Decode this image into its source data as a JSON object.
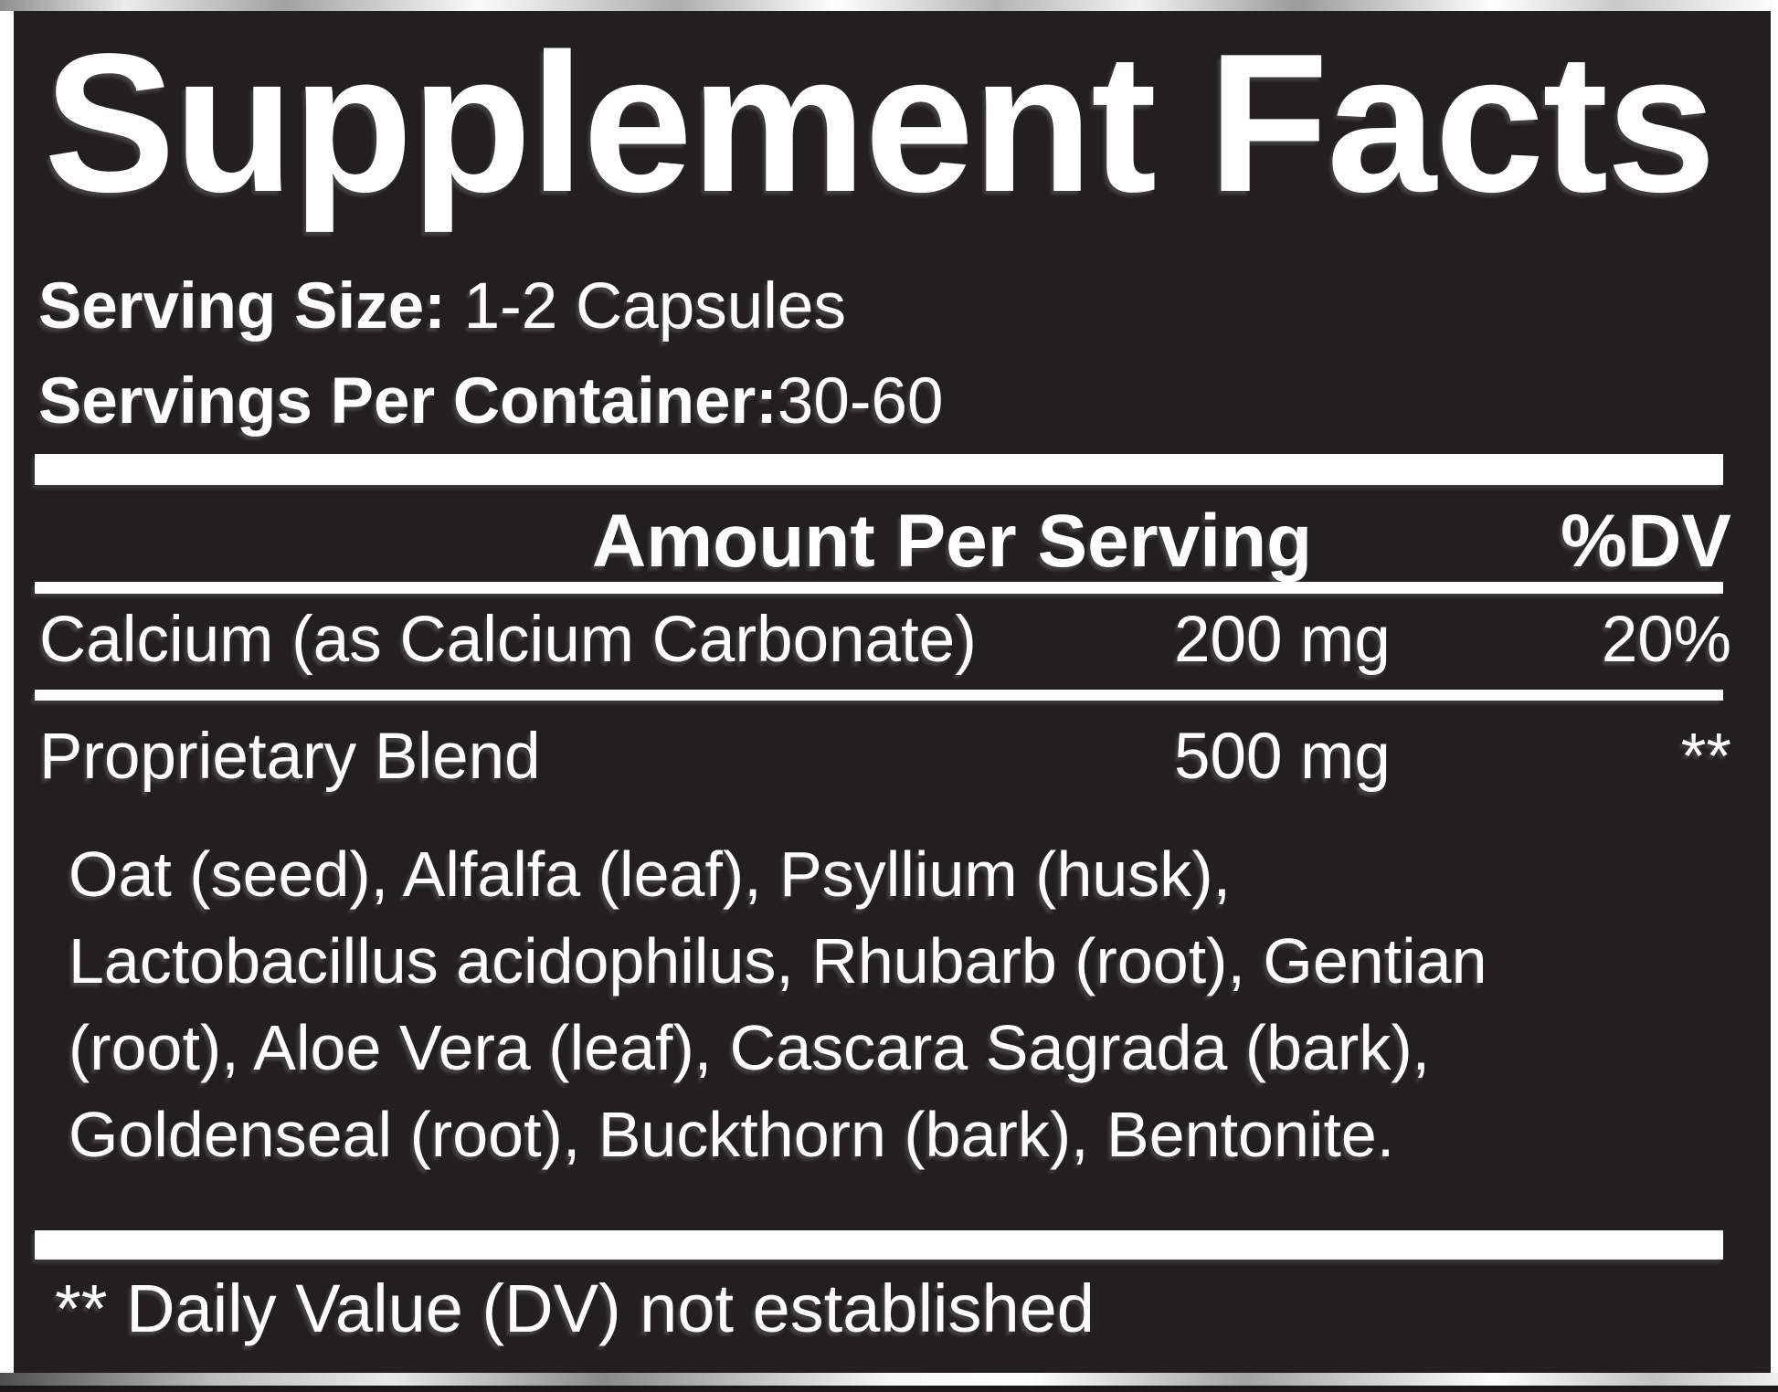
{
  "label": {
    "title": "Supplement Facts",
    "serving_size_label": "Serving Size:",
    "serving_size_value": "1-2 Capsules",
    "servings_per_container_label": "Servings Per Container:",
    "servings_per_container_value": "30-60",
    "table": {
      "header": {
        "amount": "Amount Per Serving",
        "dv": "%DV"
      },
      "rows": [
        {
          "name": "Calcium (as Calcium Carbonate)",
          "amount": "200 mg",
          "dv": "20%"
        },
        {
          "name": "Proprietary Blend",
          "amount": "500 mg",
          "dv": "**"
        }
      ],
      "blend_description_lines": [
        "Oat (seed), Alfalfa (leaf), Psyllium (husk),",
        "Lactobacillus acidophilus, Rhubarb (root), Gentian",
        "(root), Aloe Vera (leaf), Cascara Sagrada (bark),",
        "Goldenseal (root), Buckthorn (bark), Bentonite."
      ]
    },
    "footnote": "** Daily Value (DV) not established"
  },
  "colors": {
    "panel_background": "#231f20",
    "text": "#ffffff",
    "divider": "#ffffff"
  }
}
